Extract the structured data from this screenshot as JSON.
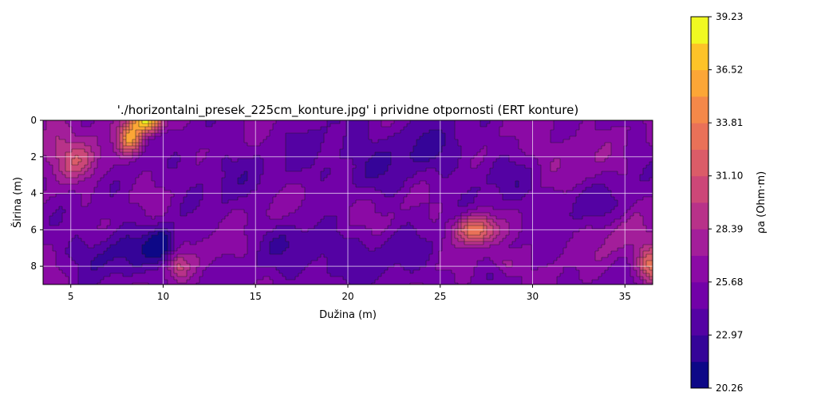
{
  "chart_data": {
    "type": "heatmap",
    "title": "'./horizontalni_presek_225cm_konture.jpg' i prividne otpornosti (ERT konture)",
    "xlabel": "Dužina (m)",
    "ylabel": "Širina (m)",
    "xlim": [
      3.5,
      36.5
    ],
    "ylim": [
      9,
      0
    ],
    "x_ticks": [
      "5",
      "10",
      "15",
      "20",
      "25",
      "30",
      "35"
    ],
    "x_tick_values": [
      5,
      10,
      15,
      20,
      25,
      30,
      35
    ],
    "y_ticks": [
      "0",
      "2",
      "4",
      "6",
      "8"
    ],
    "y_tick_values": [
      0,
      2,
      4,
      6,
      8
    ],
    "grid": true,
    "colormap": "plasma",
    "colorbar": {
      "label": "ρa (Ohm·m)",
      "min": 20.26,
      "max": 39.23,
      "ticks": [
        "20.26",
        "22.97",
        "25.68",
        "28.39",
        "31.10",
        "33.81",
        "36.52",
        "39.23"
      ],
      "tick_values": [
        20.26,
        22.97,
        25.68,
        28.39,
        31.1,
        33.81,
        36.52,
        39.23
      ],
      "levels": 14,
      "colors": [
        "#0d0887",
        "#350498",
        "#5402a3",
        "#7201a8",
        "#8b0aa5",
        "#a31e9a",
        "#b83289",
        "#cc4778",
        "#db5c68",
        "#e97158",
        "#f48849",
        "#fca636",
        "#fdc328",
        "#f0f921"
      ]
    },
    "background_level": 25.5,
    "features": [
      {
        "x": 9.1,
        "y": 0.05,
        "sx": 0.6,
        "sy": 0.45,
        "value": 38.0
      },
      {
        "x": 8.2,
        "y": 1.0,
        "sx": 0.45,
        "sy": 0.55,
        "value": 34.5
      },
      {
        "x": 26.9,
        "y": 6.0,
        "sx": 0.75,
        "sy": 0.55,
        "value": 34.0
      },
      {
        "x": 36.4,
        "y": 8.0,
        "sx": 0.5,
        "sy": 0.7,
        "value": 33.0
      },
      {
        "x": 5.5,
        "y": 2.3,
        "sx": 0.8,
        "sy": 0.7,
        "value": 29.0
      },
      {
        "x": 10.8,
        "y": 8.0,
        "sx": 0.45,
        "sy": 0.5,
        "value": 29.5
      },
      {
        "x": 4.5,
        "y": 1.0,
        "sx": 1.3,
        "sy": 1.2,
        "value": 28.0
      },
      {
        "x": 19.5,
        "y": 4.5,
        "sx": 1.6,
        "sy": 1.0,
        "value": 27.0
      },
      {
        "x": 35.0,
        "y": 6.5,
        "sx": 1.2,
        "sy": 1.0,
        "value": 27.5
      },
      {
        "x": 31.5,
        "y": 2.0,
        "sx": 1.5,
        "sy": 1.2,
        "value": 27.0
      },
      {
        "x": 28.5,
        "y": 7.8,
        "sx": 0.5,
        "sy": 0.4,
        "value": 28.0
      },
      {
        "x": 9.9,
        "y": 6.9,
        "sx": 0.5,
        "sy": 0.7,
        "value": 21.0
      },
      {
        "x": 8.0,
        "y": 7.0,
        "sx": 1.4,
        "sy": 1.0,
        "value": 23.0
      },
      {
        "x": 18.0,
        "y": 7.2,
        "sx": 2.0,
        "sy": 1.2,
        "value": 23.0
      },
      {
        "x": 20.0,
        "y": 2.5,
        "sx": 2.5,
        "sy": 1.6,
        "value": 23.5
      },
      {
        "x": 13.0,
        "y": 3.0,
        "sx": 1.8,
        "sy": 1.3,
        "value": 24.0
      },
      {
        "x": 24.5,
        "y": 1.5,
        "sx": 2.0,
        "sy": 1.2,
        "value": 23.5
      },
      {
        "x": 33.0,
        "y": 4.5,
        "sx": 2.0,
        "sy": 0.9,
        "value": 24.0
      },
      {
        "x": 29.0,
        "y": 3.5,
        "sx": 1.3,
        "sy": 1.0,
        "value": 24.0
      },
      {
        "x": 22.5,
        "y": 7.5,
        "sx": 1.8,
        "sy": 1.0,
        "value": 24.0
      },
      {
        "x": 6.0,
        "y": 7.5,
        "sx": 1.2,
        "sy": 0.8,
        "value": 24.0
      },
      {
        "x": 16.0,
        "y": 5.0,
        "sx": 1.0,
        "sy": 0.7,
        "value": 26.0
      },
      {
        "x": 12.5,
        "y": 7.2,
        "sx": 1.0,
        "sy": 0.6,
        "value": 26.5
      },
      {
        "x": 30.5,
        "y": 6.5,
        "sx": 0.8,
        "sy": 1.0,
        "value": 26.0
      }
    ]
  }
}
